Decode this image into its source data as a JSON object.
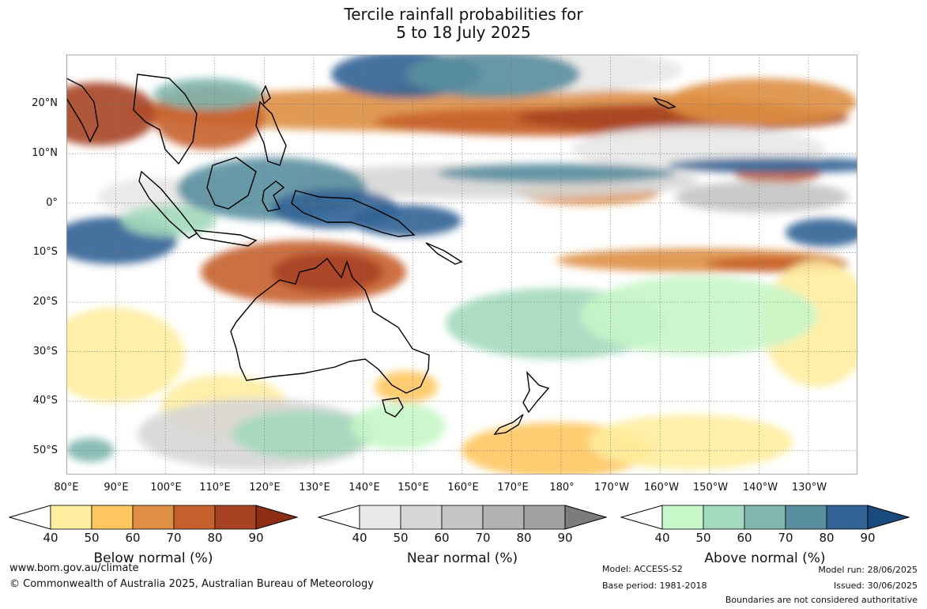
{
  "title": {
    "line1": "Tercile rainfall probabilities for",
    "line2": "5 to 18 July 2025"
  },
  "map": {
    "lat_labels": [
      "20°N",
      "10°N",
      "0°",
      "10°S",
      "20°S",
      "30°S",
      "40°S",
      "50°S"
    ],
    "lon_labels": [
      "80°E",
      "90°E",
      "100°E",
      "110°E",
      "120°E",
      "130°E",
      "140°E",
      "150°E",
      "160°E",
      "170°E",
      "180°",
      "170°W",
      "160°W",
      "150°W",
      "140°W",
      "130°W"
    ],
    "colors": {
      "below": [
        "#ffeda0",
        "#fec760",
        "#de8f44",
        "#c6602e",
        "#a74323",
        "#8c2d14"
      ],
      "near": [
        "#e8e8e8",
        "#d6d6d6",
        "#c4c4c4",
        "#b2b2b2",
        "#a0a0a0",
        "#7c7c7c"
      ],
      "above": [
        "#c7f6c8",
        "#a3d9bd",
        "#80b6ae",
        "#5a8fa0",
        "#326395",
        "#1a4b7f"
      ]
    }
  },
  "legends": [
    {
      "label": "Below normal (%)",
      "ticks": [
        "40",
        "50",
        "60",
        "70",
        "80",
        "90"
      ]
    },
    {
      "label": "Near normal (%)",
      "ticks": [
        "40",
        "50",
        "60",
        "70",
        "80",
        "90"
      ]
    },
    {
      "label": "Above normal (%)",
      "ticks": [
        "40",
        "50",
        "60",
        "70",
        "80",
        "90"
      ]
    }
  ],
  "footer": {
    "website": "www.bom.gov.au/climate",
    "copyright": "© Commonwealth of Australia 2025, Australian Bureau of Meteorology",
    "model": "Model: ACCESS-S2",
    "base_period": "Base period: 1981-2018",
    "model_run": "Model run: 28/06/2025",
    "issued": "Issued: 30/06/2025",
    "disclaimer": "Boundaries are not considered authoritative"
  }
}
